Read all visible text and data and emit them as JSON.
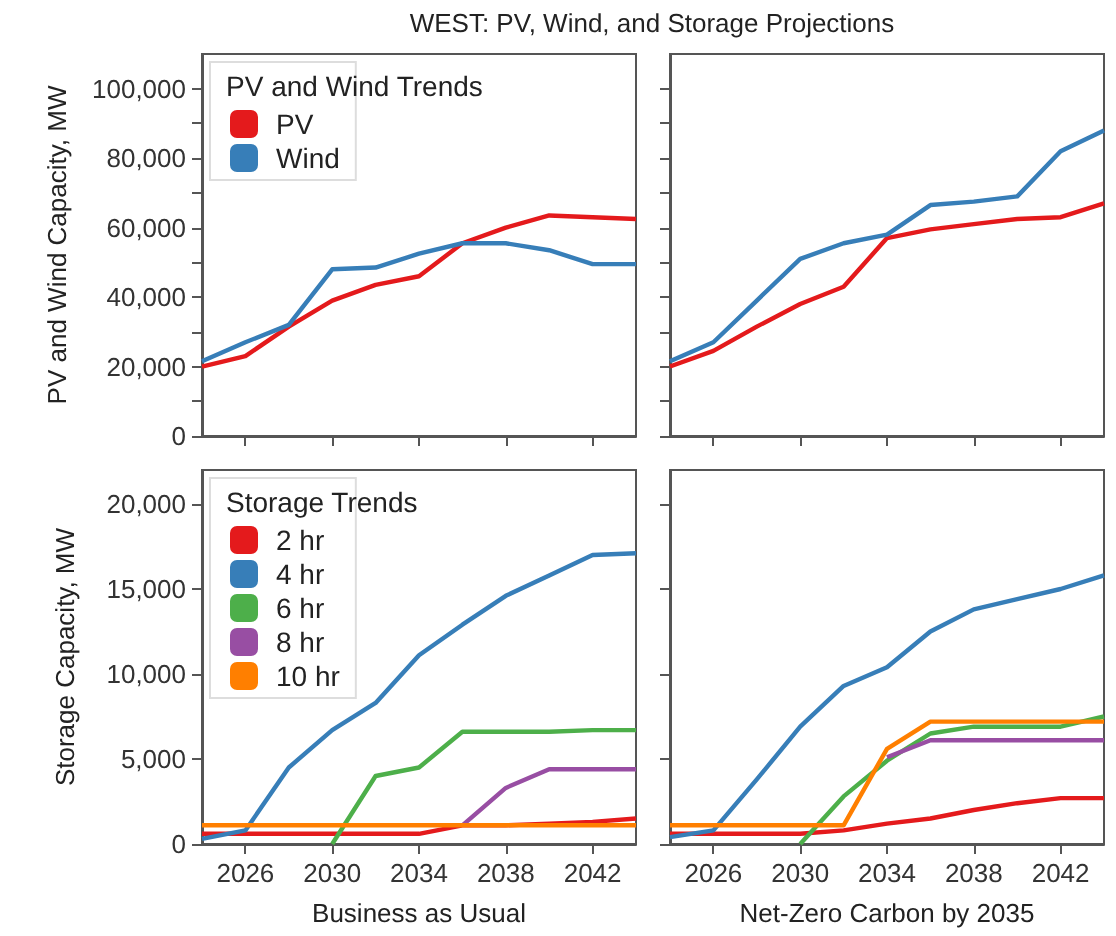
{
  "chart_data": [
    {
      "type": "line",
      "title": "WEST: PV, Wind, and Storage Projections",
      "ylabel": "PV and Wind Capacity, MW",
      "legend_title": "PV and Wind Trends",
      "legend": "top left",
      "tick_labels": "y",
      "x": [
        2024,
        2026,
        2028,
        2030,
        2032,
        2034,
        2036,
        2038,
        2040,
        2042,
        2044
      ],
      "xlim": [
        2024,
        2044
      ],
      "xticks": [
        2026,
        2030,
        2034,
        2038,
        2042
      ],
      "ylim": [
        0,
        110000
      ],
      "yticks": [
        {
          "value": 0,
          "label": "0"
        },
        {
          "value": 10000,
          "label": null
        },
        {
          "value": 20000,
          "label": "20,000"
        },
        {
          "value": 30000,
          "label": null
        },
        {
          "value": 40000,
          "label": "40,000"
        },
        {
          "value": 50000,
          "label": null
        },
        {
          "value": 60000,
          "label": "60,000"
        },
        {
          "value": 70000,
          "label": null
        },
        {
          "value": 80000,
          "label": "80,000"
        },
        {
          "value": 90000,
          "label": null
        },
        {
          "value": 100000,
          "label": "100,000"
        }
      ],
      "series": [
        {
          "name": "PV",
          "color": "#e41a1c",
          "values": [
            20000,
            23000,
            31500,
            39000,
            43500,
            46000,
            55500,
            60000,
            63500,
            63000,
            62500
          ]
        },
        {
          "name": "Wind",
          "color": "#377eb8",
          "values": [
            21500,
            27000,
            32000,
            48000,
            48500,
            52500,
            55500,
            55500,
            53500,
            49500,
            49500
          ]
        }
      ]
    },
    {
      "type": "line",
      "tick_labels": false,
      "x": [
        2024,
        2026,
        2028,
        2030,
        2032,
        2034,
        2036,
        2038,
        2040,
        2042,
        2044
      ],
      "xlim": [
        2024,
        2044
      ],
      "xticks": [
        2026,
        2030,
        2034,
        2038,
        2042
      ],
      "ylim": [
        0,
        110000
      ],
      "yticks": [
        {
          "value": 0,
          "label": null
        },
        {
          "value": 10000,
          "label": null
        },
        {
          "value": 20000,
          "label": null
        },
        {
          "value": 30000,
          "label": null
        },
        {
          "value": 40000,
          "label": null
        },
        {
          "value": 50000,
          "label": null
        },
        {
          "value": 60000,
          "label": null
        },
        {
          "value": 70000,
          "label": null
        },
        {
          "value": 80000,
          "label": null
        },
        {
          "value": 90000,
          "label": null
        },
        {
          "value": 100000,
          "label": null
        }
      ],
      "series": [
        {
          "color": "#e41a1c",
          "values": [
            20000,
            24500,
            31500,
            38000,
            43000,
            57000,
            59500,
            61000,
            62500,
            63000,
            67000
          ]
        },
        {
          "color": "#377eb8",
          "values": [
            21500,
            27000,
            39000,
            51000,
            55500,
            58000,
            66500,
            67500,
            69000,
            82000,
            88000
          ]
        }
      ]
    },
    {
      "type": "line",
      "ylabel": "Storage Capacity, MW",
      "xlabel": "Business as Usual",
      "legend_title": "Storage Trends",
      "legend": "top left",
      "x": [
        2024,
        2026,
        2028,
        2030,
        2032,
        2034,
        2036,
        2038,
        2040,
        2042,
        2044
      ],
      "xlim": [
        2024,
        2044
      ],
      "xticks": [
        2026,
        2030,
        2034,
        2038,
        2042
      ],
      "ylim": [
        0,
        22000
      ],
      "yticks": [
        {
          "value": 0,
          "label": "0"
        },
        {
          "value": 5000,
          "label": "5,000"
        },
        {
          "value": 10000,
          "label": "10,000"
        },
        {
          "value": 15000,
          "label": "15,000"
        },
        {
          "value": 20000,
          "label": "20,000"
        }
      ],
      "series": [
        {
          "name": "2 hr",
          "color": "#e41a1c",
          "values": [
            600,
            600,
            600,
            600,
            600,
            600,
            1100,
            1100,
            1200,
            1300,
            1500
          ]
        },
        {
          "name": "4 hr",
          "color": "#377eb8",
          "values": [
            300,
            800,
            4500,
            6700,
            8300,
            11100,
            12900,
            14600,
            15800,
            17000,
            17100
          ]
        },
        {
          "name": "6 hr",
          "color": "#4daf4a",
          "values": [
            null,
            null,
            null,
            0,
            4000,
            4500,
            6600,
            6600,
            6600,
            6700,
            6700
          ]
        },
        {
          "name": "8 hr",
          "color": "#984ea3",
          "values": [
            null,
            null,
            null,
            null,
            null,
            null,
            1100,
            3300,
            4400,
            4400,
            4400
          ]
        },
        {
          "name": "10 hr",
          "color": "#ff7f00",
          "values": [
            1100,
            1100,
            1100,
            1100,
            1100,
            1100,
            1100,
            1100,
            1100,
            1100,
            1100
          ]
        }
      ]
    },
    {
      "type": "line",
      "xlabel": "Net-Zero Carbon by 2035",
      "tick_labels": "x",
      "x": [
        2024,
        2026,
        2028,
        2030,
        2032,
        2034,
        2036,
        2038,
        2040,
        2042,
        2044
      ],
      "xlim": [
        2024,
        2044
      ],
      "xticks": [
        2026,
        2030,
        2034,
        2038,
        2042
      ],
      "ylim": [
        0,
        22000
      ],
      "yticks": [
        {
          "value": 0,
          "label": null
        },
        {
          "value": 5000,
          "label": null
        },
        {
          "value": 10000,
          "label": null
        },
        {
          "value": 15000,
          "label": null
        },
        {
          "value": 20000,
          "label": null
        }
      ],
      "series": [
        {
          "color": "#e41a1c",
          "values": [
            600,
            600,
            600,
            600,
            800,
            1200,
            1500,
            2000,
            2400,
            2700,
            2700
          ]
        },
        {
          "color": "#377eb8",
          "values": [
            400,
            800,
            3800,
            6900,
            9300,
            10400,
            12500,
            13800,
            14400,
            15000,
            15800
          ]
        },
        {
          "color": "#4daf4a",
          "values": [
            null,
            null,
            null,
            0,
            2800,
            4900,
            6500,
            6900,
            6900,
            6900,
            7500
          ]
        },
        {
          "color": "#984ea3",
          "values": [
            null,
            null,
            null,
            null,
            null,
            5100,
            6100,
            6100,
            6100,
            6100,
            6100
          ]
        },
        {
          "color": "#ff7f00",
          "values": [
            1100,
            1100,
            1100,
            1100,
            1100,
            5600,
            7200,
            7200,
            7200,
            7200,
            7200
          ]
        }
      ]
    }
  ]
}
